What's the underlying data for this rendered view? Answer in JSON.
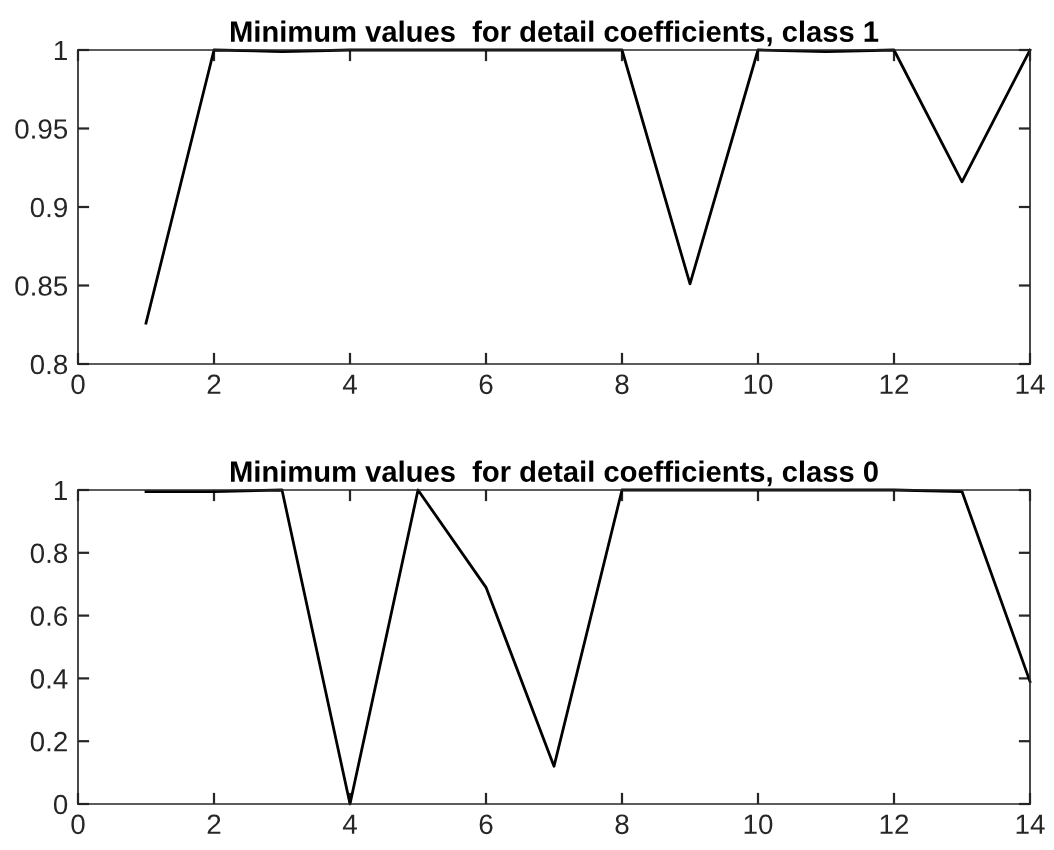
{
  "chart_data": [
    {
      "type": "line",
      "title": "Minimum values  for detail coefficients, class 1",
      "x": [
        1,
        2,
        3,
        4,
        5,
        6,
        7,
        8,
        9,
        10,
        11,
        12,
        13,
        14
      ],
      "series": [
        {
          "color": "#000000",
          "values": [
            0.826,
            1,
            0.999,
            1,
            1,
            1,
            1,
            1,
            0.851,
            1,
            0.999,
            1,
            0.916,
            1
          ]
        }
      ],
      "xlim": [
        0,
        14
      ],
      "xticks": [
        0,
        2,
        4,
        6,
        8,
        10,
        12,
        14
      ],
      "ylim": [
        0.8,
        1
      ],
      "yticks": [
        0.8,
        0.85,
        0.9,
        0.95,
        1
      ],
      "grid": false
    },
    {
      "type": "line",
      "title": "Minimum values  for detail coefficients, class 0",
      "x": [
        1,
        2,
        3,
        4,
        5,
        6,
        7,
        8,
        9,
        10,
        11,
        12,
        13,
        14
      ],
      "series": [
        {
          "color": "#000000",
          "values": [
            0.995,
            0.995,
            1,
            0,
            1,
            0.69,
            0.12,
            1,
            1,
            1,
            1,
            1,
            0.995,
            0.39
          ]
        }
      ],
      "xlim": [
        0,
        14
      ],
      "xticks": [
        0,
        2,
        4,
        6,
        8,
        10,
        12,
        14
      ],
      "ylim": [
        0,
        1
      ],
      "yticks": [
        0,
        0.2,
        0.4,
        0.6,
        0.8,
        1
      ],
      "grid": false
    }
  ]
}
